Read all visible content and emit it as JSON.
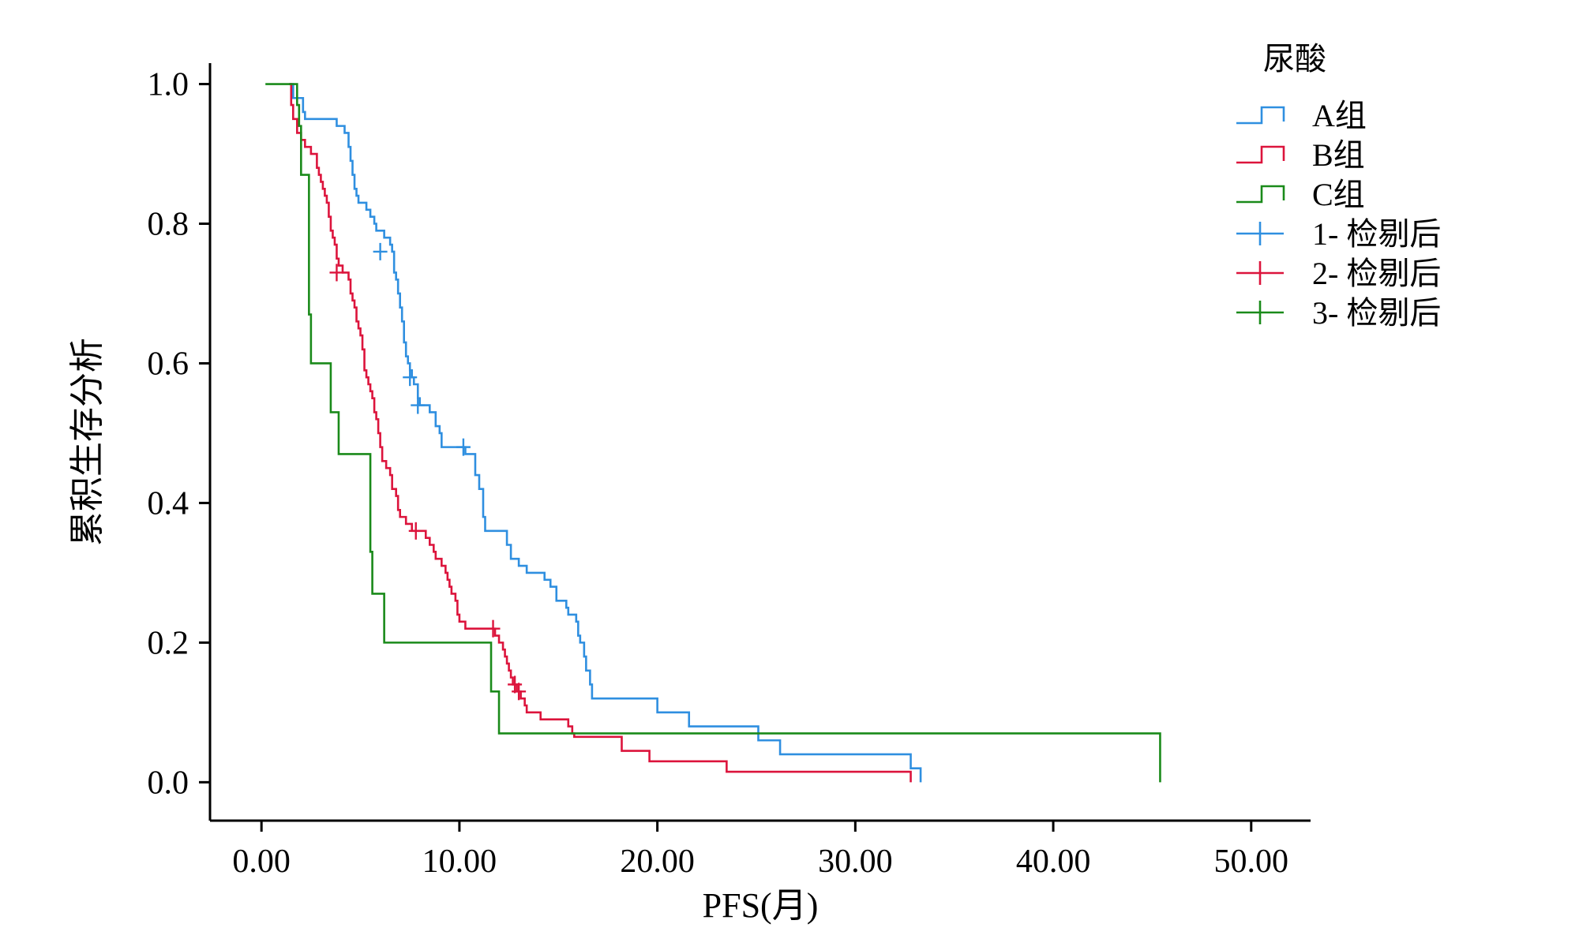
{
  "chart_data": {
    "type": "line",
    "subtype": "kaplan-meier-step",
    "xlabel": "PFS(月)",
    "ylabel": "累积生存分析",
    "xlim": [
      -2.6,
      53.0
    ],
    "ylim": [
      -0.055,
      1.03
    ],
    "xticks": [
      0,
      10,
      20,
      30,
      40,
      50
    ],
    "xtick_labels": [
      "0.00",
      "10.00",
      "20.00",
      "30.00",
      "40.00",
      "50.00"
    ],
    "yticks": [
      0.0,
      0.2,
      0.4,
      0.6,
      0.8,
      1.0
    ],
    "ytick_labels": [
      "0.0",
      "0.2",
      "0.4",
      "0.6",
      "0.8",
      "1.0"
    ],
    "legend": {
      "title": "尿酸",
      "position": "top-right",
      "entries": [
        {
          "label": "A组",
          "kind": "step",
          "color": "#2f8fe0"
        },
        {
          "label": "B组",
          "kind": "step",
          "color": "#dc143c"
        },
        {
          "label": "C组",
          "kind": "step",
          "color": "#1a8a1a"
        },
        {
          "label": "1- 检剔后",
          "kind": "censor",
          "color": "#2f8fe0"
        },
        {
          "label": "2- 检剔后",
          "kind": "censor",
          "color": "#dc143c"
        },
        {
          "label": "3- 检剔后",
          "kind": "censor",
          "color": "#1a8a1a"
        }
      ]
    },
    "series": [
      {
        "name": "A组",
        "color": "#2f8fe0",
        "start": [
          1.4,
          1.0
        ],
        "steps": [
          [
            1.6,
            0.98
          ],
          [
            2.1,
            0.96
          ],
          [
            2.2,
            0.95
          ],
          [
            3.8,
            0.94
          ],
          [
            4.2,
            0.93
          ],
          [
            4.4,
            0.91
          ],
          [
            4.5,
            0.89
          ],
          [
            4.6,
            0.87
          ],
          [
            4.7,
            0.85
          ],
          [
            4.8,
            0.84
          ],
          [
            4.9,
            0.83
          ],
          [
            5.3,
            0.82
          ],
          [
            5.5,
            0.81
          ],
          [
            5.7,
            0.8
          ],
          [
            5.8,
            0.79
          ],
          [
            6.2,
            0.78
          ],
          [
            6.5,
            0.77
          ],
          [
            6.6,
            0.76
          ],
          [
            6.7,
            0.73
          ],
          [
            6.8,
            0.72
          ],
          [
            6.9,
            0.7
          ],
          [
            7.0,
            0.68
          ],
          [
            7.1,
            0.66
          ],
          [
            7.2,
            0.63
          ],
          [
            7.3,
            0.61
          ],
          [
            7.4,
            0.6
          ],
          [
            7.5,
            0.59
          ],
          [
            7.6,
            0.58
          ],
          [
            7.7,
            0.57
          ],
          [
            7.9,
            0.55
          ],
          [
            8.0,
            0.54
          ],
          [
            8.5,
            0.53
          ],
          [
            8.8,
            0.51
          ],
          [
            9.0,
            0.5
          ],
          [
            9.1,
            0.48
          ],
          [
            10.3,
            0.47
          ],
          [
            10.8,
            0.44
          ],
          [
            11.0,
            0.42
          ],
          [
            11.2,
            0.38
          ],
          [
            11.3,
            0.36
          ],
          [
            12.4,
            0.34
          ],
          [
            12.6,
            0.32
          ],
          [
            13.0,
            0.31
          ],
          [
            13.4,
            0.3
          ],
          [
            14.3,
            0.29
          ],
          [
            14.6,
            0.28
          ],
          [
            14.9,
            0.26
          ],
          [
            15.4,
            0.25
          ],
          [
            15.5,
            0.24
          ],
          [
            15.9,
            0.23
          ],
          [
            16.0,
            0.21
          ],
          [
            16.1,
            0.2
          ],
          [
            16.3,
            0.18
          ],
          [
            16.4,
            0.16
          ],
          [
            16.6,
            0.14
          ],
          [
            16.7,
            0.12
          ],
          [
            20.0,
            0.1
          ],
          [
            21.6,
            0.08
          ],
          [
            25.1,
            0.06
          ],
          [
            26.2,
            0.04
          ],
          [
            32.8,
            0.02
          ],
          [
            33.3,
            0.0
          ]
        ],
        "censored": [
          [
            6.0,
            0.76
          ],
          [
            7.5,
            0.58
          ],
          [
            7.9,
            0.54
          ],
          [
            10.2,
            0.48
          ]
        ]
      },
      {
        "name": "B组",
        "color": "#dc143c",
        "start": [
          1.4,
          1.0
        ],
        "steps": [
          [
            1.5,
            0.97
          ],
          [
            1.6,
            0.95
          ],
          [
            1.8,
            0.93
          ],
          [
            2.0,
            0.92
          ],
          [
            2.2,
            0.91
          ],
          [
            2.5,
            0.9
          ],
          [
            2.8,
            0.88
          ],
          [
            2.9,
            0.87
          ],
          [
            3.0,
            0.86
          ],
          [
            3.1,
            0.85
          ],
          [
            3.2,
            0.84
          ],
          [
            3.3,
            0.83
          ],
          [
            3.4,
            0.81
          ],
          [
            3.5,
            0.79
          ],
          [
            3.6,
            0.78
          ],
          [
            3.7,
            0.77
          ],
          [
            3.8,
            0.75
          ],
          [
            3.9,
            0.74
          ],
          [
            4.1,
            0.73
          ],
          [
            4.4,
            0.72
          ],
          [
            4.5,
            0.7
          ],
          [
            4.6,
            0.69
          ],
          [
            4.7,
            0.68
          ],
          [
            4.8,
            0.66
          ],
          [
            4.9,
            0.65
          ],
          [
            5.0,
            0.64
          ],
          [
            5.1,
            0.62
          ],
          [
            5.2,
            0.59
          ],
          [
            5.3,
            0.58
          ],
          [
            5.4,
            0.57
          ],
          [
            5.5,
            0.56
          ],
          [
            5.6,
            0.55
          ],
          [
            5.7,
            0.53
          ],
          [
            5.8,
            0.52
          ],
          [
            5.9,
            0.5
          ],
          [
            6.0,
            0.48
          ],
          [
            6.1,
            0.46
          ],
          [
            6.3,
            0.45
          ],
          [
            6.5,
            0.44
          ],
          [
            6.6,
            0.42
          ],
          [
            6.8,
            0.41
          ],
          [
            6.9,
            0.39
          ],
          [
            7.0,
            0.38
          ],
          [
            7.3,
            0.37
          ],
          [
            7.6,
            0.36
          ],
          [
            8.3,
            0.35
          ],
          [
            8.5,
            0.34
          ],
          [
            8.7,
            0.33
          ],
          [
            8.8,
            0.32
          ],
          [
            9.1,
            0.31
          ],
          [
            9.3,
            0.3
          ],
          [
            9.4,
            0.29
          ],
          [
            9.5,
            0.28
          ],
          [
            9.6,
            0.27
          ],
          [
            9.8,
            0.26
          ],
          [
            9.9,
            0.24
          ],
          [
            10.0,
            0.23
          ],
          [
            10.3,
            0.22
          ],
          [
            11.8,
            0.21
          ],
          [
            12.0,
            0.2
          ],
          [
            12.2,
            0.19
          ],
          [
            12.3,
            0.18
          ],
          [
            12.4,
            0.17
          ],
          [
            12.5,
            0.16
          ],
          [
            12.6,
            0.15
          ],
          [
            12.7,
            0.14
          ],
          [
            12.9,
            0.13
          ],
          [
            13.1,
            0.12
          ],
          [
            13.3,
            0.11
          ],
          [
            13.4,
            0.1
          ],
          [
            14.1,
            0.09
          ],
          [
            15.5,
            0.08
          ],
          [
            15.7,
            0.07
          ],
          [
            15.8,
            0.065
          ],
          [
            18.2,
            0.045
          ],
          [
            19.6,
            0.03
          ],
          [
            23.5,
            0.015
          ],
          [
            32.8,
            0.0
          ]
        ],
        "censored": [
          [
            3.8,
            0.73
          ],
          [
            7.8,
            0.36
          ],
          [
            11.7,
            0.22
          ],
          [
            12.8,
            0.14
          ],
          [
            13.0,
            0.13
          ]
        ]
      },
      {
        "name": "C组",
        "color": "#1a8a1a",
        "start": [
          0.2,
          1.0
        ],
        "steps": [
          [
            1.8,
            0.97
          ],
          [
            1.9,
            0.94
          ],
          [
            2.0,
            0.87
          ],
          [
            2.4,
            0.67
          ],
          [
            2.5,
            0.6
          ],
          [
            3.5,
            0.53
          ],
          [
            3.9,
            0.47
          ],
          [
            5.5,
            0.33
          ],
          [
            5.6,
            0.27
          ],
          [
            6.2,
            0.2
          ],
          [
            11.6,
            0.13
          ],
          [
            12.0,
            0.07
          ],
          [
            45.4,
            0.0
          ]
        ],
        "censored": []
      }
    ]
  }
}
